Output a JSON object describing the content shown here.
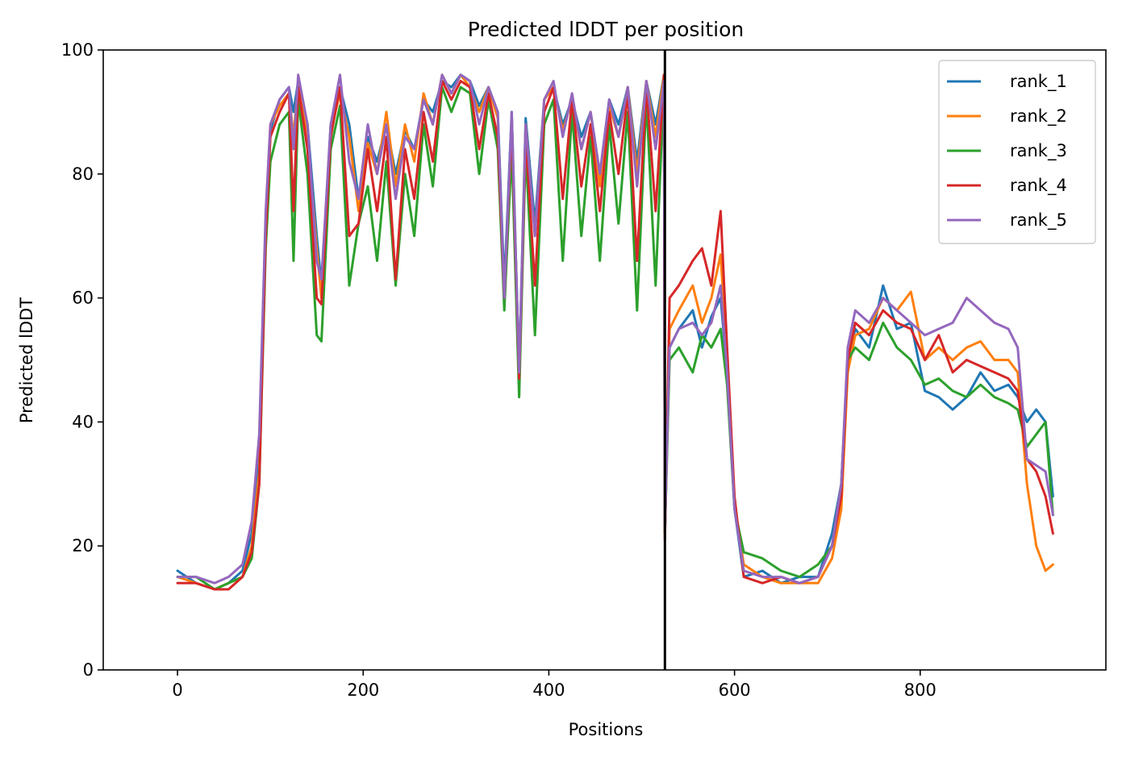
{
  "chart_data": {
    "type": "line",
    "title": "Predicted lDDT per position",
    "xlabel": "Positions",
    "ylabel": "Predicted lDDT",
    "xlim": [
      -80,
      1000
    ],
    "ylim": [
      0,
      100
    ],
    "xticks": [
      0,
      200,
      400,
      600,
      800
    ],
    "yticks": [
      0,
      20,
      40,
      60,
      80,
      100
    ],
    "grid": false,
    "legend_position": "top-right",
    "divider_x": 525,
    "divider_color": "#000000",
    "series": [
      {
        "name": "rank_1",
        "color": "#1f77b4",
        "x": [
          0,
          20,
          40,
          55,
          70,
          80,
          88,
          95,
          100,
          110,
          120,
          125,
          130,
          140,
          150,
          155,
          165,
          175,
          185,
          195,
          205,
          215,
          225,
          235,
          245,
          255,
          265,
          275,
          285,
          295,
          305,
          315,
          325,
          335,
          345,
          352,
          360,
          368,
          375,
          385,
          395,
          405,
          415,
          425,
          435,
          445,
          455,
          465,
          475,
          485,
          495,
          505,
          515,
          524,
          525,
          530,
          540,
          555,
          565,
          575,
          585,
          592,
          600,
          610,
          630,
          650,
          670,
          690,
          705,
          715,
          722,
          730,
          745,
          760,
          775,
          790,
          805,
          820,
          835,
          850,
          865,
          880,
          895,
          905,
          915,
          925,
          935,
          943
        ],
        "y": [
          16,
          14,
          13,
          14,
          16,
          22,
          35,
          70,
          87,
          92,
          94,
          90,
          95,
          88,
          70,
          62,
          88,
          94,
          88,
          76,
          86,
          82,
          88,
          80,
          87,
          84,
          92,
          90,
          95,
          94,
          96,
          95,
          91,
          94,
          90,
          62,
          90,
          48,
          89,
          72,
          92,
          94,
          88,
          92,
          86,
          90,
          80,
          92,
          88,
          94,
          82,
          95,
          88,
          96,
          22,
          52,
          55,
          58,
          52,
          57,
          60,
          48,
          26,
          15,
          16,
          14,
          15,
          15,
          22,
          30,
          50,
          55,
          52,
          62,
          55,
          56,
          45,
          44,
          42,
          44,
          48,
          45,
          46,
          44,
          40,
          42,
          40,
          28
        ]
      },
      {
        "name": "rank_2",
        "color": "#ff7f0e",
        "x": [
          0,
          20,
          40,
          55,
          70,
          80,
          88,
          95,
          100,
          110,
          120,
          125,
          130,
          140,
          150,
          155,
          165,
          175,
          185,
          195,
          205,
          215,
          225,
          235,
          245,
          255,
          265,
          275,
          285,
          295,
          305,
          315,
          325,
          335,
          345,
          352,
          360,
          368,
          375,
          385,
          395,
          405,
          415,
          425,
          435,
          445,
          455,
          465,
          475,
          485,
          495,
          505,
          515,
          524,
          525,
          530,
          540,
          555,
          565,
          575,
          585,
          592,
          600,
          610,
          630,
          650,
          670,
          690,
          705,
          715,
          722,
          730,
          745,
          760,
          775,
          790,
          805,
          820,
          835,
          850,
          865,
          880,
          895,
          905,
          915,
          925,
          935,
          943
        ],
        "y": [
          15,
          14,
          13,
          14,
          15,
          20,
          32,
          72,
          88,
          91,
          93,
          86,
          95,
          86,
          68,
          60,
          87,
          93,
          86,
          74,
          85,
          80,
          90,
          78,
          88,
          82,
          93,
          88,
          96,
          93,
          96,
          94,
          90,
          94,
          89,
          59,
          89,
          46,
          88,
          70,
          92,
          94,
          87,
          92,
          84,
          90,
          78,
          91,
          86,
          94,
          80,
          95,
          86,
          96,
          22,
          55,
          58,
          62,
          56,
          60,
          67,
          50,
          27,
          17,
          15,
          14,
          14,
          14,
          18,
          26,
          48,
          54,
          55,
          60,
          58,
          61,
          50,
          52,
          50,
          52,
          53,
          50,
          50,
          48,
          30,
          20,
          16,
          17
        ]
      },
      {
        "name": "rank_3",
        "color": "#2ca02c",
        "x": [
          0,
          20,
          40,
          55,
          70,
          80,
          88,
          95,
          100,
          110,
          120,
          125,
          130,
          140,
          150,
          155,
          165,
          175,
          185,
          195,
          205,
          215,
          225,
          235,
          245,
          255,
          265,
          275,
          285,
          295,
          305,
          315,
          325,
          335,
          345,
          352,
          360,
          368,
          375,
          385,
          395,
          405,
          415,
          425,
          435,
          445,
          455,
          465,
          475,
          485,
          495,
          505,
          515,
          524,
          525,
          530,
          540,
          555,
          565,
          575,
          585,
          592,
          600,
          610,
          630,
          650,
          670,
          690,
          705,
          715,
          722,
          730,
          745,
          760,
          775,
          790,
          805,
          820,
          835,
          850,
          865,
          880,
          895,
          905,
          915,
          925,
          935,
          943
        ],
        "y": [
          15,
          15,
          13,
          14,
          15,
          18,
          30,
          68,
          82,
          88,
          90,
          66,
          92,
          80,
          54,
          53,
          84,
          91,
          62,
          72,
          78,
          66,
          82,
          62,
          80,
          70,
          88,
          78,
          94,
          90,
          94,
          93,
          80,
          92,
          84,
          58,
          84,
          44,
          84,
          54,
          88,
          92,
          66,
          90,
          70,
          86,
          66,
          88,
          72,
          90,
          58,
          92,
          62,
          95,
          22,
          50,
          52,
          48,
          54,
          52,
          55,
          46,
          26,
          19,
          18,
          16,
          15,
          17,
          20,
          30,
          50,
          52,
          50,
          56,
          52,
          50,
          46,
          47,
          45,
          44,
          46,
          44,
          43,
          42,
          36,
          38,
          40,
          25
        ]
      },
      {
        "name": "rank_4",
        "color": "#d62728",
        "x": [
          0,
          20,
          40,
          55,
          70,
          80,
          88,
          95,
          100,
          110,
          120,
          125,
          130,
          140,
          150,
          155,
          165,
          175,
          185,
          195,
          205,
          215,
          225,
          235,
          245,
          255,
          265,
          275,
          285,
          295,
          305,
          315,
          325,
          335,
          345,
          352,
          360,
          368,
          375,
          385,
          395,
          405,
          415,
          425,
          435,
          445,
          455,
          465,
          475,
          485,
          495,
          505,
          515,
          524,
          525,
          530,
          540,
          555,
          565,
          575,
          585,
          592,
          600,
          610,
          630,
          650,
          670,
          690,
          705,
          715,
          722,
          730,
          745,
          760,
          775,
          790,
          805,
          820,
          835,
          850,
          865,
          880,
          895,
          905,
          915,
          925,
          935,
          943
        ],
        "y": [
          14,
          14,
          13,
          13,
          15,
          19,
          30,
          70,
          86,
          90,
          93,
          74,
          94,
          84,
          60,
          59,
          86,
          94,
          70,
          72,
          84,
          74,
          86,
          63,
          84,
          76,
          90,
          82,
          95,
          92,
          95,
          94,
          84,
          93,
          86,
          60,
          88,
          47,
          86,
          62,
          90,
          94,
          76,
          92,
          78,
          88,
          74,
          90,
          80,
          93,
          66,
          94,
          74,
          96,
          21,
          60,
          62,
          66,
          68,
          62,
          74,
          52,
          28,
          15,
          14,
          15,
          14,
          15,
          20,
          28,
          50,
          56,
          54,
          58,
          56,
          55,
          50,
          54,
          48,
          50,
          49,
          48,
          47,
          45,
          34,
          32,
          28,
          22
        ]
      },
      {
        "name": "rank_5",
        "color": "#9467bd",
        "x": [
          0,
          20,
          40,
          55,
          70,
          80,
          88,
          95,
          100,
          110,
          120,
          125,
          130,
          140,
          150,
          155,
          165,
          175,
          185,
          195,
          205,
          215,
          225,
          235,
          245,
          255,
          265,
          275,
          285,
          295,
          305,
          315,
          325,
          335,
          345,
          352,
          360,
          368,
          375,
          385,
          395,
          405,
          415,
          425,
          435,
          445,
          455,
          465,
          475,
          485,
          495,
          505,
          515,
          524,
          525,
          530,
          540,
          555,
          565,
          575,
          585,
          592,
          600,
          610,
          630,
          650,
          670,
          690,
          705,
          715,
          722,
          730,
          745,
          760,
          775,
          790,
          805,
          820,
          835,
          850,
          865,
          880,
          895,
          905,
          915,
          925,
          935,
          943
        ],
        "y": [
          15,
          15,
          14,
          15,
          17,
          24,
          38,
          74,
          88,
          92,
          94,
          84,
          96,
          88,
          66,
          63,
          88,
          96,
          82,
          76,
          88,
          80,
          88,
          76,
          86,
          84,
          92,
          88,
          96,
          93,
          96,
          95,
          88,
          94,
          90,
          60,
          90,
          48,
          88,
          70,
          92,
          95,
          86,
          93,
          84,
          90,
          80,
          92,
          86,
          94,
          78,
          95,
          84,
          95,
          23,
          52,
          55,
          56,
          54,
          56,
          62,
          48,
          26,
          16,
          15,
          15,
          14,
          15,
          20,
          30,
          52,
          58,
          56,
          60,
          58,
          56,
          54,
          55,
          56,
          60,
          58,
          56,
          55,
          52,
          34,
          33,
          32,
          25
        ]
      }
    ]
  }
}
